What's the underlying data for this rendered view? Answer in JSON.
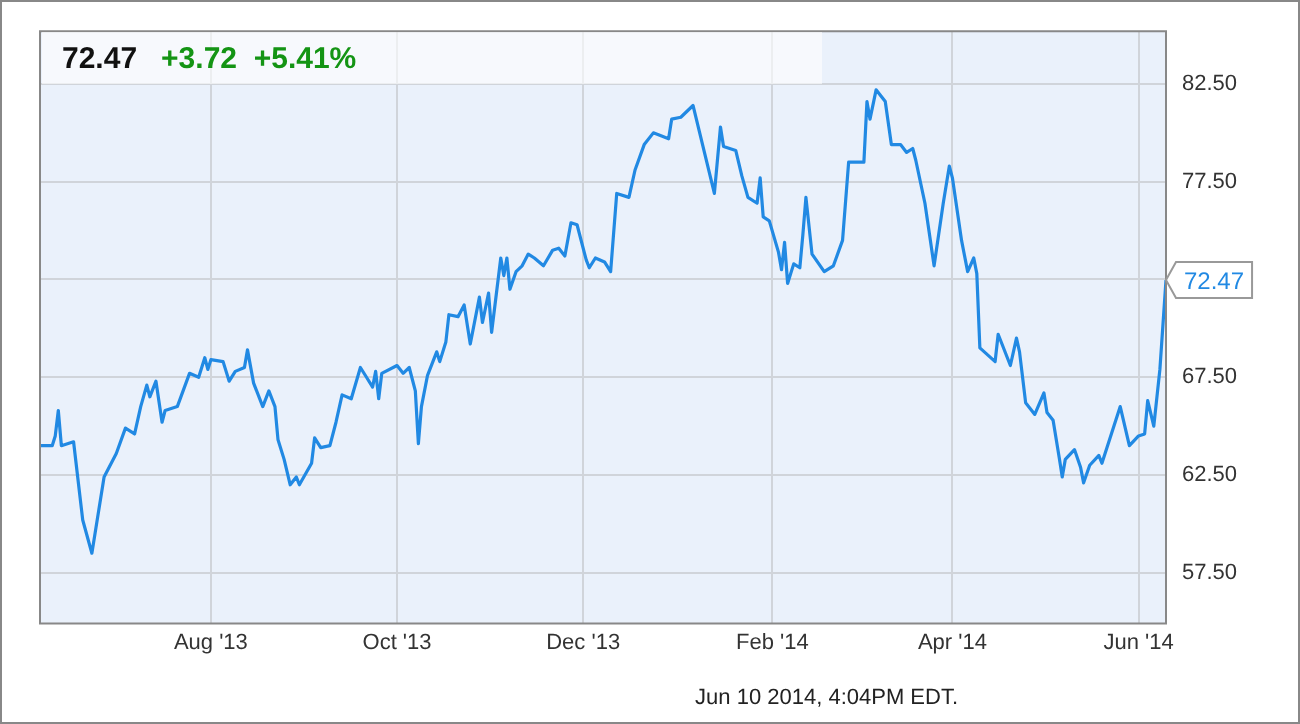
{
  "chart_data": {
    "type": "line",
    "title": "72.47",
    "subtitle": "+3.72  +5.41%",
    "x": [
      "2013-06-06",
      "2013-06-10",
      "2013-06-11",
      "2013-06-12",
      "2013-06-13",
      "2013-06-17",
      "2013-06-20",
      "2013-06-23",
      "2013-06-27",
      "2013-07-01",
      "2013-07-04",
      "2013-07-07",
      "2013-07-09",
      "2013-07-11",
      "2013-07-12",
      "2013-07-14",
      "2013-07-16",
      "2013-07-17",
      "2013-07-21",
      "2013-07-25",
      "2013-07-28",
      "2013-07-30",
      "2013-07-31",
      "2013-08-01",
      "2013-08-05",
      "2013-08-07",
      "2013-08-09",
      "2013-08-12",
      "2013-08-13",
      "2013-08-15",
      "2013-08-18",
      "2013-08-20",
      "2013-08-22",
      "2013-08-23",
      "2013-08-25",
      "2013-08-27",
      "2013-08-29",
      "2013-08-30",
      "2013-09-03",
      "2013-09-04",
      "2013-09-06",
      "2013-09-09",
      "2013-09-11",
      "2013-09-13",
      "2013-09-16",
      "2013-09-19",
      "2013-09-21",
      "2013-09-23",
      "2013-09-24",
      "2013-09-25",
      "2013-09-26",
      "2013-10-01",
      "2013-10-03",
      "2013-10-05",
      "2013-10-07",
      "2013-10-08",
      "2013-10-09",
      "2013-10-11",
      "2013-10-14",
      "2013-10-15",
      "2013-10-17",
      "2013-10-18",
      "2013-10-21",
      "2013-10-23",
      "2013-10-25",
      "2013-10-28",
      "2013-10-29",
      "2013-10-31",
      "2013-11-01",
      "2013-11-04",
      "2013-11-05",
      "2013-11-06",
      "2013-11-07",
      "2013-11-09",
      "2013-11-11",
      "2013-11-13",
      "2013-11-15",
      "2013-11-18",
      "2013-11-21",
      "2013-11-23",
      "2013-11-25",
      "2013-11-27",
      "2013-11-29",
      "2013-12-02",
      "2013-12-03",
      "2013-12-05",
      "2013-12-08",
      "2013-12-10",
      "2013-12-12",
      "2013-12-16",
      "2013-12-18",
      "2013-12-21",
      "2013-12-24",
      "2013-12-29",
      "2013-12-30",
      "2014-01-02",
      "2014-01-06",
      "2014-01-13",
      "2014-01-15",
      "2014-01-16",
      "2014-01-20",
      "2014-01-22",
      "2014-01-24",
      "2014-01-27",
      "2014-01-28",
      "2014-01-29",
      "2014-01-31",
      "2014-02-03",
      "2014-02-04",
      "2014-02-05",
      "2014-02-06",
      "2014-02-08",
      "2014-02-10",
      "2014-02-11",
      "2014-02-12",
      "2014-02-14",
      "2014-02-18",
      "2014-02-21",
      "2014-02-24",
      "2014-02-26",
      "2014-03-03",
      "2014-03-04",
      "2014-03-05",
      "2014-03-07",
      "2014-03-10",
      "2014-03-12",
      "2014-03-15",
      "2014-03-17",
      "2014-03-19",
      "2014-03-20",
      "2014-03-23",
      "2014-03-26",
      "2014-03-29",
      "2014-03-31",
      "2014-04-01",
      "2014-04-04",
      "2014-04-06",
      "2014-04-08",
      "2014-04-09",
      "2014-04-10",
      "2014-04-15",
      "2014-04-16",
      "2014-04-20",
      "2014-04-22",
      "2014-04-23",
      "2014-04-25",
      "2014-04-28",
      "2014-05-01",
      "2014-05-02",
      "2014-05-04",
      "2014-05-06",
      "2014-05-07",
      "2014-05-08",
      "2014-05-11",
      "2014-05-13",
      "2014-05-14",
      "2014-05-16",
      "2014-05-19",
      "2014-05-20",
      "2014-05-26",
      "2014-05-29",
      "2014-06-01",
      "2014-06-03",
      "2014-06-04",
      "2014-06-06",
      "2014-06-08",
      "2014-06-10"
    ],
    "series": [
      {
        "color": "#2189e3",
        "values": [
          64.0,
          64.0,
          64.5,
          65.8,
          64.0,
          64.2,
          60.2,
          58.5,
          62.4,
          63.6,
          64.9,
          64.6,
          66.0,
          67.1,
          66.5,
          67.3,
          65.2,
          65.8,
          66.0,
          67.7,
          67.5,
          68.5,
          67.9,
          68.4,
          68.3,
          67.3,
          67.8,
          68.0,
          68.9,
          67.2,
          66.0,
          66.8,
          66.0,
          64.3,
          63.3,
          62.0,
          62.4,
          62.0,
          63.1,
          64.4,
          63.9,
          64.0,
          65.2,
          66.6,
          66.4,
          68.0,
          67.5,
          67.0,
          67.8,
          66.4,
          67.7,
          68.1,
          67.7,
          68.0,
          66.8,
          64.1,
          66.0,
          67.6,
          68.8,
          68.3,
          69.3,
          70.7,
          70.6,
          71.2,
          69.2,
          71.6,
          70.3,
          71.8,
          69.8,
          73.6,
          72.7,
          73.6,
          72.0,
          72.9,
          73.2,
          73.8,
          73.6,
          73.2,
          74.0,
          74.1,
          73.7,
          75.4,
          75.3,
          73.5,
          73.1,
          73.6,
          73.4,
          72.9,
          76.9,
          76.7,
          78.1,
          79.4,
          80.0,
          79.7,
          80.7,
          80.8,
          81.4,
          76.9,
          80.3,
          79.3,
          79.1,
          77.8,
          76.7,
          76.4,
          77.7,
          75.7,
          75.5,
          73.9,
          73.0,
          74.4,
          72.3,
          73.3,
          73.1,
          74.8,
          76.7,
          73.8,
          72.9,
          73.2,
          74.5,
          78.5,
          78.5,
          81.6,
          80.7,
          82.2,
          81.6,
          79.4,
          79.4,
          79.0,
          79.2,
          78.6,
          76.4,
          73.2,
          76.4,
          78.3,
          77.7,
          74.5,
          72.9,
          73.6,
          72.8,
          69.0,
          68.3,
          69.7,
          68.1,
          69.5,
          68.8,
          66.2,
          65.6,
          66.7,
          65.7,
          65.3,
          63.4,
          62.4,
          63.3,
          63.8,
          62.9,
          62.1,
          63.0,
          63.5,
          63.1,
          66.0,
          64.0,
          64.5,
          64.6,
          66.3,
          65.0,
          67.9,
          72.47
        ]
      }
    ],
    "xlim": [
      "2013-06-06",
      "2014-06-10"
    ],
    "xticks": [
      {
        "value": "2013-08-01",
        "label": "Aug '13"
      },
      {
        "value": "2013-10-01",
        "label": "Oct '13"
      },
      {
        "value": "2013-12-01",
        "label": "Dec '13"
      },
      {
        "value": "2014-02-01",
        "label": "Feb '14"
      },
      {
        "value": "2014-04-01",
        "label": "Apr '14"
      },
      {
        "value": "2014-06-01",
        "label": "Jun '14"
      }
    ],
    "ylim": [
      54.9,
      85.2
    ],
    "yticks": [
      {
        "value": 57.5,
        "label": "57.50"
      },
      {
        "value": 62.5,
        "label": "62.50"
      },
      {
        "value": 67.5,
        "label": "67.50"
      },
      {
        "value": 72.5,
        "label": null
      },
      {
        "value": 77.5,
        "label": "77.50"
      },
      {
        "value": 82.5,
        "label": "82.50"
      }
    ],
    "grid": true,
    "legend": false,
    "marker": "none",
    "line_style": "solid",
    "annotations": [
      {
        "text": "72.47",
        "x": "2014-06-10",
        "y": 72.47
      },
      "Jun 10 2014, 4:04PM EDT."
    ]
  }
}
